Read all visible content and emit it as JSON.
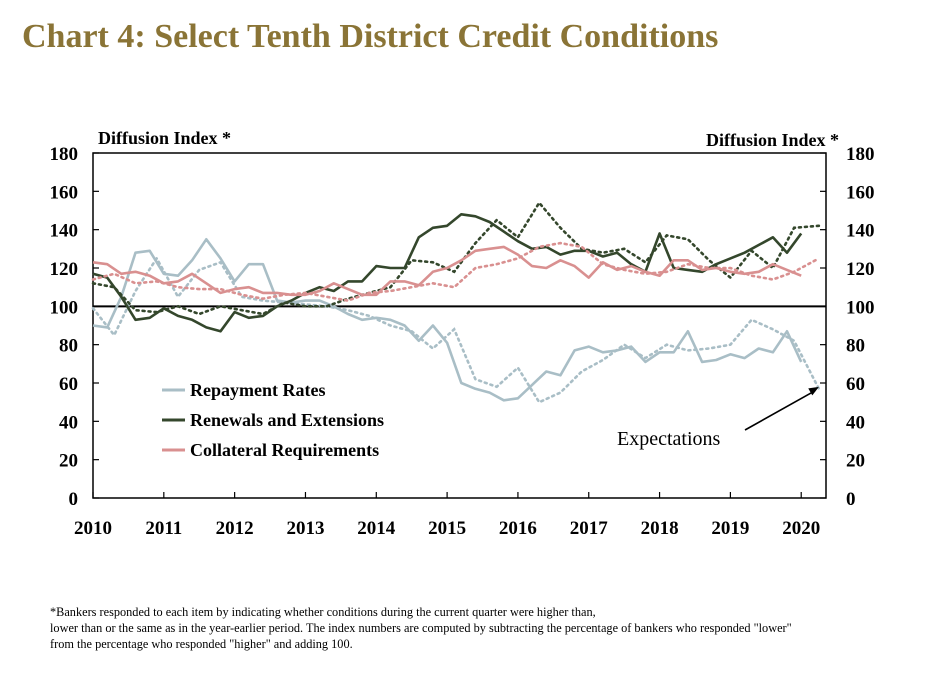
{
  "title": "Chart 4: Select Tenth District Credit Conditions",
  "footnote": {
    "lines": [
      "*Bankers responded to each item by indicating whether conditions during the current quarter were higher than,",
      "lower than or the same as in the year-earlier period.  The index numbers are computed by subtracting the percentage of bankers who responded \"lower\"",
      "from the percentage who responded \"higher\" and adding 100."
    ]
  },
  "chart_data": {
    "type": "line",
    "ylabel_left": "Diffusion Index *",
    "ylabel_right": "Diffusion Index *",
    "ylim": [
      0,
      180
    ],
    "yticks": [
      0,
      20,
      40,
      60,
      80,
      100,
      120,
      140,
      160,
      180
    ],
    "xlim": [
      2010,
      2020.35
    ],
    "xticks": [
      2010,
      2011,
      2012,
      2013,
      2014,
      2015,
      2016,
      2017,
      2018,
      2019,
      2020
    ],
    "xtick_labels": [
      "2010",
      "2011",
      "2012",
      "2013",
      "2014",
      "2015",
      "2016",
      "2017",
      "2018",
      "2019",
      "2020"
    ],
    "reference_line": 100,
    "grid": false,
    "legend_position": "lower-left",
    "annotation": {
      "text": "Expectations",
      "points_to": {
        "x": 2020.25,
        "y": 58
      }
    },
    "series": [
      {
        "name": "Repayment Rates",
        "color": "#a9bec6",
        "x": [
          2010.0,
          2010.2,
          2010.4,
          2010.6,
          2010.8,
          2011.0,
          2011.2,
          2011.4,
          2011.6,
          2011.8,
          2012.0,
          2012.2,
          2012.4,
          2012.6,
          2012.8,
          2013.0,
          2013.2,
          2013.4,
          2013.6,
          2013.8,
          2014.0,
          2014.2,
          2014.4,
          2014.6,
          2014.8,
          2015.0,
          2015.2,
          2015.4,
          2015.6,
          2015.8,
          2016.0,
          2016.2,
          2016.4,
          2016.6,
          2016.8,
          2017.0,
          2017.2,
          2017.4,
          2017.6,
          2017.8,
          2018.0,
          2018.2,
          2018.4,
          2018.6,
          2018.8,
          2019.0,
          2019.2,
          2019.4,
          2019.6,
          2019.8,
          2020.0
        ],
        "values": [
          90,
          89,
          105,
          128,
          129,
          117,
          116,
          124,
          135,
          125,
          113,
          122,
          122,
          103,
          102,
          103,
          103,
          100,
          96,
          93,
          94,
          93,
          90,
          82,
          90,
          81,
          60,
          57,
          55,
          51,
          52,
          59,
          66,
          64,
          77,
          79,
          76,
          77,
          79,
          71,
          76,
          76,
          87,
          71,
          72,
          75,
          73,
          78,
          76,
          87,
          71
        ],
        "expectations": {
          "x": [
            2010.0,
            2010.3,
            2010.6,
            2010.9,
            2011.2,
            2011.5,
            2011.8,
            2012.1,
            2012.4,
            2012.7,
            2013.0,
            2013.3,
            2013.6,
            2013.9,
            2014.2,
            2014.5,
            2014.8,
            2015.1,
            2015.4,
            2015.7,
            2016.0,
            2016.3,
            2016.6,
            2016.9,
            2017.2,
            2017.5,
            2017.8,
            2018.1,
            2018.4,
            2018.7,
            2019.0,
            2019.3,
            2019.6,
            2019.9,
            2020.25
          ],
          "values": [
            99,
            85,
            108,
            125,
            105,
            119,
            123,
            105,
            103,
            102,
            101,
            100,
            98,
            95,
            90,
            87,
            78,
            88,
            62,
            58,
            68,
            50,
            55,
            66,
            72,
            80,
            73,
            80,
            77,
            78,
            80,
            93,
            88,
            82,
            57
          ]
        }
      },
      {
        "name": "Renewals and Extensions",
        "color": "#34472c",
        "x": [
          2010.0,
          2010.2,
          2010.4,
          2010.6,
          2010.8,
          2011.0,
          2011.2,
          2011.4,
          2011.6,
          2011.8,
          2012.0,
          2012.2,
          2012.4,
          2012.6,
          2012.8,
          2013.0,
          2013.2,
          2013.4,
          2013.6,
          2013.8,
          2014.0,
          2014.2,
          2014.4,
          2014.6,
          2014.8,
          2015.0,
          2015.2,
          2015.4,
          2015.6,
          2015.8,
          2016.0,
          2016.2,
          2016.4,
          2016.6,
          2016.8,
          2017.0,
          2017.2,
          2017.4,
          2017.6,
          2017.8,
          2018.0,
          2018.2,
          2018.4,
          2018.6,
          2018.8,
          2019.0,
          2019.2,
          2019.4,
          2019.6,
          2019.8,
          2020.0
        ],
        "values": [
          117,
          115,
          105,
          93,
          94,
          99,
          95,
          93,
          89,
          87,
          97,
          94,
          95,
          100,
          103,
          107,
          110,
          108,
          113,
          113,
          121,
          120,
          120,
          136,
          141,
          142,
          148,
          147,
          144,
          139,
          134,
          130,
          131,
          127,
          129,
          129,
          126,
          128,
          122,
          118,
          138,
          120,
          119,
          118,
          122,
          125,
          128,
          132,
          136,
          128,
          138
        ],
        "expectations": {
          "x": [
            2010.0,
            2010.3,
            2010.6,
            2010.9,
            2011.2,
            2011.5,
            2011.8,
            2012.1,
            2012.4,
            2012.7,
            2013.0,
            2013.3,
            2013.6,
            2013.9,
            2014.2,
            2014.5,
            2014.8,
            2015.1,
            2015.4,
            2015.7,
            2016.0,
            2016.3,
            2016.6,
            2016.9,
            2017.2,
            2017.5,
            2017.8,
            2018.1,
            2018.4,
            2018.7,
            2019.0,
            2019.3,
            2019.6,
            2019.9,
            2020.25
          ],
          "values": [
            112,
            110,
            98,
            97,
            100,
            96,
            100,
            98,
            96,
            102,
            100,
            100,
            104,
            107,
            110,
            124,
            123,
            118,
            133,
            145,
            136,
            154,
            141,
            130,
            128,
            130,
            123,
            137,
            135,
            124,
            115,
            129,
            120,
            141,
            142
          ]
        }
      },
      {
        "name": "Collateral Requirements",
        "color": "#d99090",
        "x": [
          2010.0,
          2010.2,
          2010.4,
          2010.6,
          2010.8,
          2011.0,
          2011.2,
          2011.4,
          2011.6,
          2011.8,
          2012.0,
          2012.2,
          2012.4,
          2012.6,
          2012.8,
          2013.0,
          2013.2,
          2013.4,
          2013.6,
          2013.8,
          2014.0,
          2014.2,
          2014.4,
          2014.6,
          2014.8,
          2015.0,
          2015.2,
          2015.4,
          2015.6,
          2015.8,
          2016.0,
          2016.2,
          2016.4,
          2016.6,
          2016.8,
          2017.0,
          2017.2,
          2017.4,
          2017.6,
          2017.8,
          2018.0,
          2018.2,
          2018.4,
          2018.6,
          2018.8,
          2019.0,
          2019.2,
          2019.4,
          2019.6,
          2019.8,
          2020.0
        ],
        "values": [
          123,
          122,
          117,
          118,
          116,
          112,
          113,
          117,
          112,
          107,
          109,
          110,
          107,
          107,
          106,
          106,
          108,
          112,
          109,
          106,
          106,
          113,
          113,
          111,
          118,
          120,
          124,
          129,
          130,
          131,
          127,
          121,
          120,
          124,
          121,
          115,
          123,
          119,
          121,
          118,
          116,
          124,
          124,
          119,
          120,
          118,
          117,
          118,
          122,
          119,
          116
        ],
        "expectations": {
          "x": [
            2010.0,
            2010.3,
            2010.6,
            2010.9,
            2011.2,
            2011.5,
            2011.8,
            2012.1,
            2012.4,
            2012.7,
            2013.0,
            2013.3,
            2013.6,
            2013.9,
            2014.2,
            2014.5,
            2014.8,
            2015.1,
            2015.4,
            2015.7,
            2016.0,
            2016.3,
            2016.6,
            2016.9,
            2017.2,
            2017.5,
            2017.8,
            2018.1,
            2018.4,
            2018.7,
            2019.0,
            2019.3,
            2019.6,
            2019.9,
            2020.25
          ],
          "values": [
            114,
            117,
            112,
            113,
            110,
            109,
            109,
            106,
            104,
            106,
            107,
            105,
            103,
            107,
            108,
            110,
            112,
            110,
            120,
            122,
            125,
            131,
            133,
            131,
            122,
            119,
            117,
            118,
            122,
            120,
            120,
            116,
            114,
            118,
            125
          ]
        }
      }
    ]
  }
}
